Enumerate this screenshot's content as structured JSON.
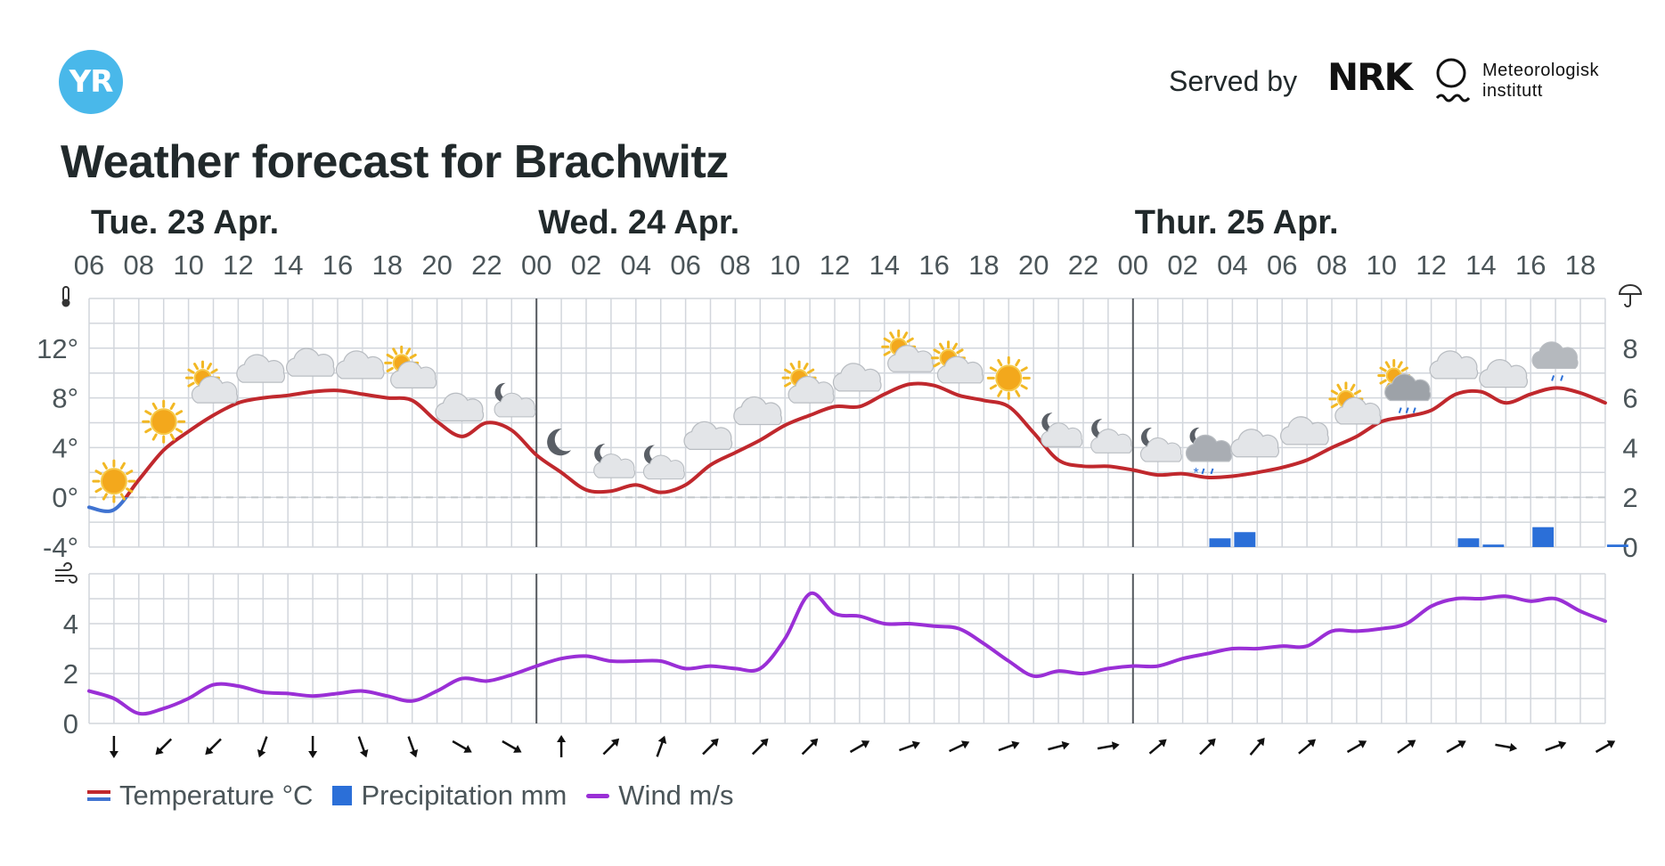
{
  "header": {
    "logo_text": "YR",
    "served_by": "Served by",
    "nrk_text": "NRK",
    "met_line1": "Meteorologisk",
    "met_line2": "institutt",
    "title": "Weather forecast for Brachwitz"
  },
  "colors": {
    "temp_warm": "#c0282d",
    "temp_cold": "#3f73d1",
    "precip": "#2b6fd8",
    "wind": "#9a2fd6",
    "grid": "#d2d6dc",
    "day_line": "#55595e",
    "logo_bg": "#49b8ea"
  },
  "legend": {
    "temperature": "Temperature °C",
    "precipitation": "Precipitation mm",
    "wind": "Wind m/s"
  },
  "chart_data": {
    "type": "line",
    "days": [
      {
        "label": "Tue. 23 Apr.",
        "hour_offset": 0
      },
      {
        "label": "Wed. 24 Apr.",
        "hour_offset": 18
      },
      {
        "label": "Thur. 25 Apr.",
        "hour_offset": 42
      }
    ],
    "hour_labels": [
      "06",
      "08",
      "10",
      "12",
      "14",
      "16",
      "18",
      "20",
      "22",
      "00",
      "02",
      "04",
      "06",
      "08",
      "10",
      "12",
      "14",
      "16",
      "18",
      "20",
      "22",
      "00",
      "02",
      "04",
      "06",
      "08",
      "10",
      "12",
      "14",
      "16",
      "18"
    ],
    "temp_axis_ticks": [
      "12°",
      "8°",
      "4°",
      "0°",
      "-4°"
    ],
    "temp_axis_values": [
      12,
      8,
      4,
      0,
      -4
    ],
    "precip_axis_ticks": [
      "8",
      "6",
      "4",
      "2",
      "0"
    ],
    "precip_axis_values": [
      8,
      6,
      4,
      2,
      0
    ],
    "wind_axis_ticks": [
      "4",
      "2",
      "0"
    ],
    "wind_axis_values": [
      4,
      2,
      0
    ],
    "temp_ylim": [
      -4,
      16
    ],
    "precip_ylim": [
      0,
      10
    ],
    "wind_ylim": [
      0,
      6
    ],
    "series": [
      {
        "name": "Temperature °C",
        "x_hours": [
          0,
          1,
          2,
          3,
          4,
          5,
          6,
          7,
          8,
          9,
          10,
          11,
          12,
          13,
          14,
          15,
          16,
          17,
          18,
          19,
          20,
          21,
          22,
          23,
          24,
          25,
          26,
          27,
          28,
          29,
          30,
          31,
          32,
          33,
          34,
          35,
          36,
          37,
          38,
          39,
          40,
          41,
          42,
          43,
          44,
          45,
          46,
          47,
          48,
          49,
          50,
          51,
          52,
          53,
          54,
          55,
          56,
          57,
          58,
          59,
          60,
          61
        ],
        "values": [
          -0.8,
          -1.0,
          1.4,
          3.8,
          5.3,
          6.6,
          7.6,
          8.0,
          8.2,
          8.5,
          8.6,
          8.3,
          8.0,
          7.8,
          6.1,
          4.9,
          6.0,
          5.4,
          3.4,
          2.0,
          0.6,
          0.5,
          1.0,
          0.4,
          1.0,
          2.6,
          3.6,
          4.6,
          5.8,
          6.6,
          7.3,
          7.3,
          8.3,
          9.1,
          9.0,
          8.2,
          7.8,
          7.3,
          5.2,
          3.0,
          2.5,
          2.5,
          2.2,
          1.8,
          1.9,
          1.6,
          1.7,
          2.0,
          2.4,
          3.0,
          4.0,
          4.9,
          6.1,
          6.5,
          7.0,
          8.3,
          8.5,
          7.6,
          8.3,
          8.8,
          8.4,
          7.6
        ]
      },
      {
        "name": "Precipitation mm",
        "x_hours": [
          45,
          46,
          55,
          56,
          58,
          61
        ],
        "values": [
          0.35,
          0.6,
          0.35,
          0.1,
          0.8,
          0.1
        ]
      },
      {
        "name": "Wind m/s",
        "x_hours": [
          0,
          1,
          2,
          3,
          4,
          5,
          6,
          7,
          8,
          9,
          10,
          11,
          12,
          13,
          14,
          15,
          16,
          17,
          18,
          19,
          20,
          21,
          22,
          23,
          24,
          25,
          26,
          27,
          28,
          29,
          30,
          31,
          32,
          33,
          34,
          35,
          36,
          37,
          38,
          39,
          40,
          41,
          42,
          43,
          44,
          45,
          46,
          47,
          48,
          49,
          50,
          51,
          52,
          53,
          54,
          55,
          56,
          57,
          58,
          59,
          60,
          61
        ],
        "values": [
          1.3,
          1.0,
          0.4,
          0.6,
          1.0,
          1.55,
          1.5,
          1.25,
          1.2,
          1.1,
          1.2,
          1.3,
          1.1,
          0.9,
          1.3,
          1.8,
          1.7,
          1.95,
          2.3,
          2.6,
          2.7,
          2.5,
          2.5,
          2.5,
          2.2,
          2.3,
          2.2,
          2.2,
          3.4,
          5.2,
          4.4,
          4.3,
          4.0,
          4.0,
          3.9,
          3.8,
          3.2,
          2.5,
          1.9,
          2.1,
          2.0,
          2.2,
          2.3,
          2.3,
          2.6,
          2.8,
          3.0,
          3.0,
          3.1,
          3.1,
          3.7,
          3.7,
          3.8,
          4.0,
          4.7,
          5.0,
          5.0,
          5.1,
          4.9,
          5.0,
          4.5,
          4.1
        ]
      }
    ],
    "weather_icons": [
      {
        "h": 1,
        "icon": "sun"
      },
      {
        "h": 3,
        "icon": "sun"
      },
      {
        "h": 5,
        "icon": "partly-cloudy-day"
      },
      {
        "h": 7,
        "icon": "cloud"
      },
      {
        "h": 9,
        "icon": "cloud"
      },
      {
        "h": 11,
        "icon": "cloud"
      },
      {
        "h": 13,
        "icon": "partly-cloudy-day"
      },
      {
        "h": 15,
        "icon": "cloud"
      },
      {
        "h": 17,
        "icon": "partly-cloudy-night"
      },
      {
        "h": 19,
        "icon": "moon"
      },
      {
        "h": 21,
        "icon": "partly-cloudy-night"
      },
      {
        "h": 23,
        "icon": "partly-cloudy-night"
      },
      {
        "h": 25,
        "icon": "cloud"
      },
      {
        "h": 27,
        "icon": "cloud"
      },
      {
        "h": 29,
        "icon": "partly-cloudy-day"
      },
      {
        "h": 31,
        "icon": "cloud"
      },
      {
        "h": 33,
        "icon": "partly-cloudy-day"
      },
      {
        "h": 35,
        "icon": "partly-cloudy-day"
      },
      {
        "h": 37,
        "icon": "sun"
      },
      {
        "h": 39,
        "icon": "partly-cloudy-night"
      },
      {
        "h": 41,
        "icon": "partly-cloudy-night"
      },
      {
        "h": 43,
        "icon": "partly-cloudy-night"
      },
      {
        "h": 45,
        "icon": "sleet-night"
      },
      {
        "h": 47,
        "icon": "cloud"
      },
      {
        "h": 49,
        "icon": "cloud"
      },
      {
        "h": 51,
        "icon": "partly-cloudy-day"
      },
      {
        "h": 53,
        "icon": "rain-showers-day"
      },
      {
        "h": 55,
        "icon": "cloud"
      },
      {
        "h": 57,
        "icon": "cloud"
      },
      {
        "h": 59,
        "icon": "light-rain"
      }
    ],
    "wind_directions_deg": [
      180,
      225,
      225,
      200,
      180,
      160,
      160,
      120,
      120,
      0,
      45,
      20,
      45,
      45,
      45,
      60,
      70,
      65,
      70,
      75,
      80,
      50,
      45,
      40,
      50,
      60,
      55,
      60,
      100,
      70,
      60
    ],
    "grid": true,
    "legend_position": "bottom-left"
  }
}
